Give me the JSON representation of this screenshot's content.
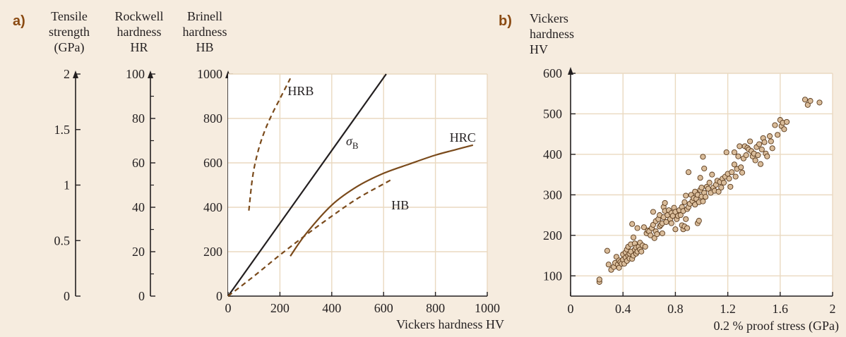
{
  "colors": {
    "background": "#f6ecdf",
    "plot_background": "#ffffff",
    "grid": "#ead9c0",
    "axis": "#231f20",
    "curve_brown": "#7a4a1b",
    "sigma_line": "#231f20",
    "marker_fill": "#d9bc9a",
    "marker_edge": "#5a3a1c",
    "panel_label": "#8a4a12"
  },
  "chart_data": [
    {
      "id": "a",
      "panel_label": "a)",
      "type": "line",
      "xlabel": "Vickers hardness HV",
      "xlim": [
        0,
        1000
      ],
      "x_ticks": [
        0,
        200,
        400,
        600,
        800,
        1000
      ],
      "grid": true,
      "left_axes": [
        {
          "title_lines": [
            "Tensile",
            "strength",
            "(GPa)"
          ],
          "range": [
            0,
            2
          ],
          "labeled_ticks": [
            {
              "value": 0,
              "label": "0"
            },
            {
              "value": 0.5,
              "label": "0.5"
            },
            {
              "value": 1,
              "label": "1"
            },
            {
              "value": 1.5,
              "label": "1.5"
            },
            {
              "value": 2,
              "label": "2"
            }
          ],
          "minor_ticks": []
        },
        {
          "title_lines": [
            "Rockwell",
            "hardness",
            "HR"
          ],
          "range": [
            0,
            100
          ],
          "labeled_ticks": [
            {
              "value": 0,
              "label": "0"
            },
            {
              "value": 20,
              "label": "20"
            },
            {
              "value": 40,
              "label": "40"
            },
            {
              "value": 60,
              "label": "60"
            },
            {
              "value": 80,
              "label": "80"
            },
            {
              "value": 100,
              "label": "100"
            }
          ],
          "minor_ticks": [
            10,
            30,
            50,
            70,
            90
          ]
        },
        {
          "title_lines": [
            "Brinell",
            "hardness",
            "HB"
          ],
          "range": [
            0,
            1000
          ],
          "labeled_ticks": [
            {
              "value": 0,
              "label": "0"
            },
            {
              "value": 200,
              "label": "200"
            },
            {
              "value": 400,
              "label": "400"
            },
            {
              "value": 600,
              "label": "600"
            },
            {
              "value": 800,
              "label": "800"
            },
            {
              "value": 1000,
              "label": "1000"
            }
          ],
          "minor_ticks": [],
          "is_main_y": true
        }
      ],
      "series": [
        {
          "name": "HRB",
          "axis": "Rockwell hardness HR",
          "style": "dashed",
          "color": "#7a4a1b",
          "x": [
            80,
            95,
            115,
            140,
            170,
            205,
            240
          ],
          "y": [
            38.5,
            54,
            65,
            74,
            82,
            90,
            98
          ],
          "label": {
            "text": "HRB",
            "at_x": 230,
            "at_y": 90.5
          }
        },
        {
          "name": "σ_B",
          "axis": "Tensile strength (GPa)",
          "style": "solid",
          "color": "#231f20",
          "x": [
            0,
            610
          ],
          "y": [
            0,
            2.0
          ],
          "label": {
            "text": "σ",
            "subscript": "B",
            "at_x": 455,
            "at_y": 1.36
          }
        },
        {
          "name": "HRC",
          "axis": "Rockwell hardness HR",
          "style": "solid",
          "color": "#7a4a1b",
          "x": [
            240,
            300,
            400,
            500,
            600,
            700,
            800,
            880,
            945
          ],
          "y": [
            18,
            28,
            41,
            49.5,
            55.3,
            59.5,
            63.5,
            66,
            68
          ],
          "label": {
            "text": "HRC",
            "at_x": 855,
            "at_y": 69.5
          }
        },
        {
          "name": "HB",
          "axis": "Brinell hardness HB",
          "style": "dashed",
          "color": "#7a4a1b",
          "x": [
            0,
            100,
            200,
            300,
            400,
            500,
            600,
            630
          ],
          "y": [
            0,
            90,
            185,
            275,
            360,
            440,
            505,
            525
          ],
          "label": {
            "text": "HB",
            "at_x": 630,
            "at_y": 390
          }
        }
      ]
    },
    {
      "id": "b",
      "panel_label": "b)",
      "type": "scatter",
      "ylabel_lines": [
        "Vickers",
        "hardness",
        "HV"
      ],
      "xlabel": "0.2 % proof stress (GPa)",
      "xlim": [
        0,
        2
      ],
      "ylim": [
        50,
        600
      ],
      "x_ticks": [
        0,
        0.4,
        0.8,
        1.2,
        1.6,
        2
      ],
      "x_tick_labels": [
        "0",
        "0.4",
        "0.8",
        "1.2",
        "1.6",
        "2"
      ],
      "y_ticks": [
        100,
        200,
        300,
        400,
        500,
        600
      ],
      "grid": true,
      "points": [
        [
          0.22,
          85
        ],
        [
          0.22,
          91
        ],
        [
          0.28,
          162
        ],
        [
          0.29,
          128
        ],
        [
          0.31,
          115
        ],
        [
          0.33,
          122
        ],
        [
          0.34,
          132
        ],
        [
          0.35,
          147
        ],
        [
          0.36,
          128
        ],
        [
          0.37,
          138
        ],
        [
          0.37,
          120
        ],
        [
          0.38,
          134
        ],
        [
          0.39,
          130
        ],
        [
          0.4,
          153
        ],
        [
          0.4,
          140
        ],
        [
          0.41,
          130
        ],
        [
          0.42,
          158
        ],
        [
          0.42,
          145
        ],
        [
          0.43,
          137
        ],
        [
          0.43,
          165
        ],
        [
          0.44,
          150
        ],
        [
          0.44,
          172
        ],
        [
          0.45,
          143
        ],
        [
          0.45,
          155
        ],
        [
          0.46,
          178
        ],
        [
          0.46,
          160
        ],
        [
          0.47,
          228
        ],
        [
          0.47,
          142
        ],
        [
          0.48,
          150
        ],
        [
          0.48,
          195
        ],
        [
          0.49,
          165
        ],
        [
          0.49,
          180
        ],
        [
          0.5,
          170
        ],
        [
          0.5,
          155
        ],
        [
          0.51,
          218
        ],
        [
          0.51,
          160
        ],
        [
          0.52,
          172
        ],
        [
          0.53,
          182
        ],
        [
          0.53,
          165
        ],
        [
          0.54,
          160
        ],
        [
          0.55,
          175
        ],
        [
          0.56,
          220
        ],
        [
          0.57,
          172
        ],
        [
          0.58,
          205
        ],
        [
          0.59,
          212
        ],
        [
          0.6,
          210
        ],
        [
          0.61,
          200
        ],
        [
          0.62,
          218
        ],
        [
          0.63,
          258
        ],
        [
          0.63,
          226
        ],
        [
          0.64,
          193
        ],
        [
          0.65,
          235
        ],
        [
          0.65,
          210
        ],
        [
          0.66,
          203
        ],
        [
          0.67,
          240
        ],
        [
          0.68,
          222
        ],
        [
          0.68,
          250
        ],
        [
          0.69,
          226
        ],
        [
          0.7,
          205
        ],
        [
          0.7,
          230
        ],
        [
          0.71,
          270
        ],
        [
          0.71,
          245
        ],
        [
          0.72,
          280
        ],
        [
          0.72,
          260
        ],
        [
          0.73,
          233
        ],
        [
          0.74,
          250
        ],
        [
          0.75,
          262
        ],
        [
          0.76,
          240
        ],
        [
          0.77,
          255
        ],
        [
          0.77,
          230
        ],
        [
          0.78,
          248
        ],
        [
          0.79,
          268
        ],
        [
          0.8,
          215
        ],
        [
          0.8,
          258
        ],
        [
          0.81,
          240
        ],
        [
          0.82,
          248
        ],
        [
          0.83,
          262
        ],
        [
          0.84,
          250
        ],
        [
          0.85,
          270
        ],
        [
          0.85,
          225
        ],
        [
          0.86,
          215
        ],
        [
          0.86,
          260
        ],
        [
          0.87,
          222
        ],
        [
          0.87,
          282
        ],
        [
          0.88,
          240
        ],
        [
          0.88,
          298
        ],
        [
          0.89,
          265
        ],
        [
          0.89,
          218
        ],
        [
          0.9,
          270
        ],
        [
          0.9,
          356
        ],
        [
          0.91,
          278
        ],
        [
          0.92,
          300
        ],
        [
          0.93,
          285
        ],
        [
          0.94,
          292
        ],
        [
          0.95,
          308
        ],
        [
          0.95,
          276
        ],
        [
          0.96,
          290
        ],
        [
          0.97,
          230
        ],
        [
          0.97,
          300
        ],
        [
          0.98,
          236
        ],
        [
          0.98,
          282
        ],
        [
          0.99,
          312
        ],
        [
          0.99,
          342
        ],
        [
          1.0,
          296
        ],
        [
          1.0,
          318
        ],
        [
          1.01,
          394
        ],
        [
          1.01,
          284
        ],
        [
          1.02,
          305
        ],
        [
          1.02,
          365
        ],
        [
          1.03,
          295
        ],
        [
          1.04,
          320
        ],
        [
          1.05,
          315
        ],
        [
          1.06,
          330
        ],
        [
          1.07,
          305
        ],
        [
          1.08,
          350
        ],
        [
          1.09,
          318
        ],
        [
          1.1,
          310
        ],
        [
          1.11,
          325
        ],
        [
          1.12,
          335
        ],
        [
          1.13,
          308
        ],
        [
          1.14,
          332
        ],
        [
          1.15,
          318
        ],
        [
          1.16,
          340
        ],
        [
          1.17,
          330
        ],
        [
          1.18,
          345
        ],
        [
          1.19,
          405
        ],
        [
          1.2,
          352
        ],
        [
          1.21,
          340
        ],
        [
          1.22,
          320
        ],
        [
          1.23,
          356
        ],
        [
          1.25,
          405
        ],
        [
          1.25,
          375
        ],
        [
          1.26,
          345
        ],
        [
          1.27,
          364
        ],
        [
          1.28,
          395
        ],
        [
          1.29,
          420
        ],
        [
          1.3,
          368
        ],
        [
          1.31,
          355
        ],
        [
          1.32,
          390
        ],
        [
          1.33,
          420
        ],
        [
          1.34,
          398
        ],
        [
          1.35,
          416
        ],
        [
          1.36,
          412
        ],
        [
          1.37,
          432
        ],
        [
          1.38,
          408
        ],
        [
          1.39,
          395
        ],
        [
          1.4,
          402
        ],
        [
          1.41,
          385
        ],
        [
          1.42,
          418
        ],
        [
          1.43,
          398
        ],
        [
          1.44,
          425
        ],
        [
          1.45,
          376
        ],
        [
          1.46,
          412
        ],
        [
          1.47,
          440
        ],
        [
          1.48,
          430
        ],
        [
          1.49,
          402
        ],
        [
          1.5,
          395
        ],
        [
          1.52,
          445
        ],
        [
          1.53,
          432
        ],
        [
          1.54,
          415
        ],
        [
          1.56,
          472
        ],
        [
          1.58,
          448
        ],
        [
          1.6,
          485
        ],
        [
          1.61,
          470
        ],
        [
          1.62,
          478
        ],
        [
          1.63,
          462
        ],
        [
          1.65,
          480
        ],
        [
          1.79,
          535
        ],
        [
          1.81,
          522
        ],
        [
          1.83,
          532
        ],
        [
          1.9,
          528
        ]
      ]
    }
  ]
}
